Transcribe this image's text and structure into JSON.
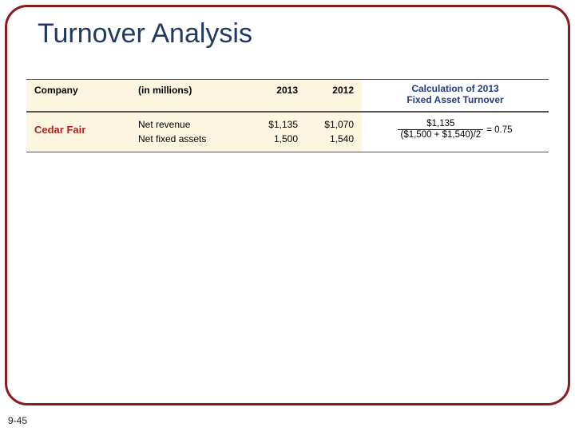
{
  "slide": {
    "title": "Turnover Analysis",
    "page_number": "9-45",
    "title_color": "#1f3864",
    "frame_border_color": "#8b1a1a"
  },
  "table": {
    "left_bg": "#fcf6e0",
    "right_bg": "#ffffff",
    "headers": {
      "company": "Company",
      "units": "(in millions)",
      "year1": "2013",
      "year2": "2012",
      "calc_line1": "Calculation of 2013",
      "calc_line2": "Fixed Asset Turnover",
      "calc_color": "#1f3c88"
    },
    "row": {
      "company": "Cedar Fair",
      "company_color": "#b22222",
      "metric1_label": "Net revenue",
      "metric1_y1": "$1,135",
      "metric1_y2": "$1,070",
      "metric2_label": "Net fixed assets",
      "metric2_y1": "1,500",
      "metric2_y2": "1,540",
      "calc_numerator": "$1,135",
      "calc_denominator": "($1,500 + $1,540)/2",
      "calc_result": "= 0.75"
    }
  }
}
